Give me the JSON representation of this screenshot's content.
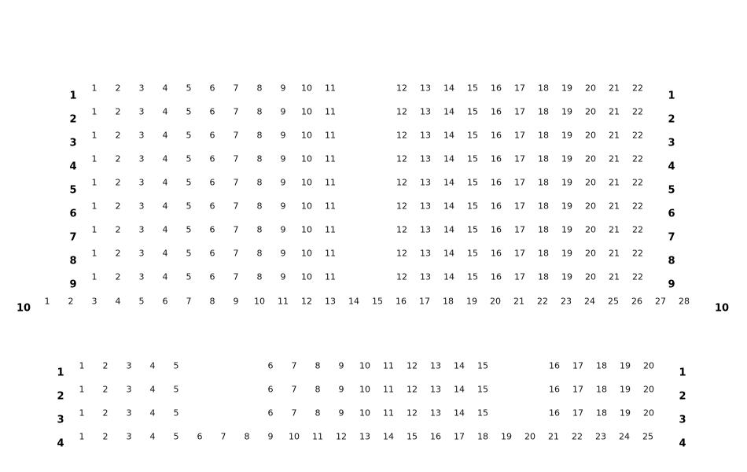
{
  "upper_section": {
    "rows": [
      {
        "label": "1",
        "blocks": [
          [
            1,
            2,
            3,
            4,
            5,
            6,
            7,
            8,
            9,
            10,
            11
          ],
          [
            12,
            13,
            14,
            15,
            16,
            17,
            18,
            19,
            20,
            21,
            22
          ]
        ]
      },
      {
        "label": "2",
        "blocks": [
          [
            1,
            2,
            3,
            4,
            5,
            6,
            7,
            8,
            9,
            10,
            11
          ],
          [
            12,
            13,
            14,
            15,
            16,
            17,
            18,
            19,
            20,
            21,
            22
          ]
        ]
      },
      {
        "label": "3",
        "blocks": [
          [
            1,
            2,
            3,
            4,
            5,
            6,
            7,
            8,
            9,
            10,
            11
          ],
          [
            12,
            13,
            14,
            15,
            16,
            17,
            18,
            19,
            20,
            21,
            22
          ]
        ]
      },
      {
        "label": "4",
        "blocks": [
          [
            1,
            2,
            3,
            4,
            5,
            6,
            7,
            8,
            9,
            10,
            11
          ],
          [
            12,
            13,
            14,
            15,
            16,
            17,
            18,
            19,
            20,
            21,
            22
          ]
        ]
      },
      {
        "label": "5",
        "blocks": [
          [
            1,
            2,
            3,
            4,
            5,
            6,
            7,
            8,
            9,
            10,
            11
          ],
          [
            12,
            13,
            14,
            15,
            16,
            17,
            18,
            19,
            20,
            21,
            22
          ]
        ]
      },
      {
        "label": "6",
        "blocks": [
          [
            1,
            2,
            3,
            4,
            5,
            6,
            7,
            8,
            9,
            10,
            11
          ],
          [
            12,
            13,
            14,
            15,
            16,
            17,
            18,
            19,
            20,
            21,
            22
          ]
        ]
      },
      {
        "label": "7",
        "blocks": [
          [
            1,
            2,
            3,
            4,
            5,
            6,
            7,
            8,
            9,
            10,
            11
          ],
          [
            12,
            13,
            14,
            15,
            16,
            17,
            18,
            19,
            20,
            21,
            22
          ]
        ]
      },
      {
        "label": "8",
        "blocks": [
          [
            1,
            2,
            3,
            4,
            5,
            6,
            7,
            8,
            9,
            10,
            11
          ],
          [
            12,
            13,
            14,
            15,
            16,
            17,
            18,
            19,
            20,
            21,
            22
          ]
        ]
      },
      {
        "label": "9",
        "blocks": [
          [
            1,
            2,
            3,
            4,
            5,
            6,
            7,
            8,
            9,
            10,
            11
          ],
          [
            12,
            13,
            14,
            15,
            16,
            17,
            18,
            19,
            20,
            21,
            22
          ]
        ]
      },
      {
        "label": "10",
        "blocks": [
          [
            1,
            2,
            3,
            4,
            5,
            6,
            7,
            8,
            9,
            10,
            11,
            12,
            13,
            14,
            15,
            16,
            17,
            18,
            19,
            20,
            21,
            22,
            23,
            24,
            25,
            26,
            27,
            28
          ]
        ]
      }
    ]
  },
  "lower_section": {
    "rows": [
      {
        "label": "1",
        "blocks": [
          [
            1,
            2,
            3,
            4,
            5
          ],
          [
            6,
            7,
            8,
            9,
            10,
            11,
            12,
            13,
            14,
            15
          ],
          [
            16,
            17,
            18,
            19,
            20
          ]
        ]
      },
      {
        "label": "2",
        "blocks": [
          [
            1,
            2,
            3,
            4,
            5
          ],
          [
            6,
            7,
            8,
            9,
            10,
            11,
            12,
            13,
            14,
            15
          ],
          [
            16,
            17,
            18,
            19,
            20
          ]
        ]
      },
      {
        "label": "3",
        "blocks": [
          [
            1,
            2,
            3,
            4,
            5
          ],
          [
            6,
            7,
            8,
            9,
            10,
            11,
            12,
            13,
            14,
            15
          ],
          [
            16,
            17,
            18,
            19,
            20
          ]
        ]
      },
      {
        "label": "4",
        "blocks": [
          [
            1,
            2,
            3,
            4,
            5,
            6,
            7,
            8,
            9,
            10,
            11,
            12,
            13,
            14,
            15,
            16,
            17,
            18,
            19,
            20,
            21,
            22,
            23,
            24,
            25
          ]
        ]
      }
    ]
  }
}
